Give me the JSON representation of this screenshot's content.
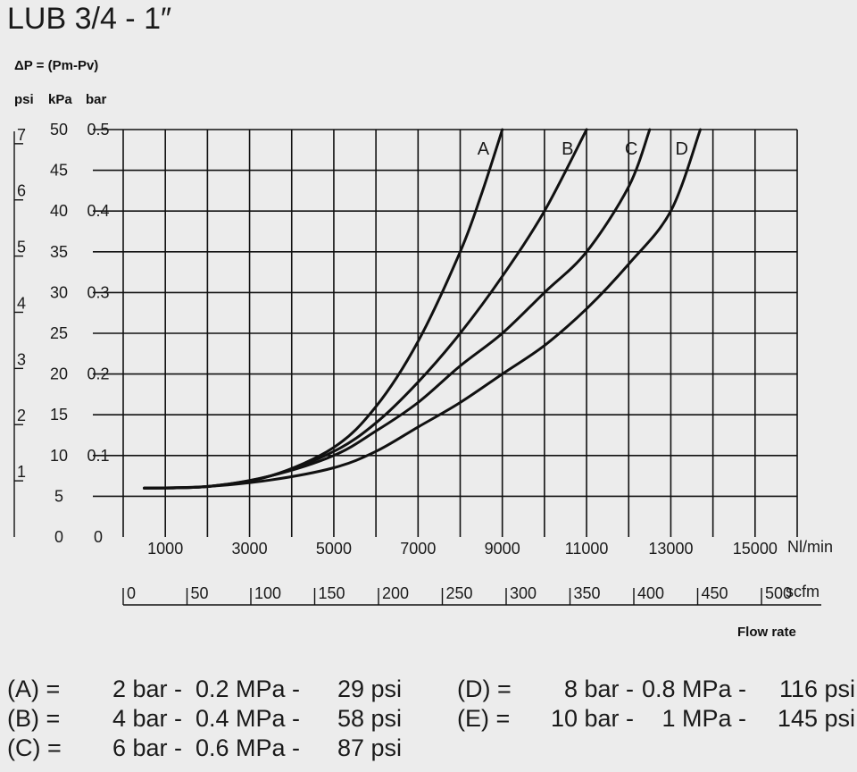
{
  "title": "LUB 3/4 - 1″",
  "delta_p_label": "ΔP = (Pm-Pv)",
  "unit_headers": {
    "psi": "psi",
    "kpa": "kPa",
    "bar": "bar"
  },
  "chart_data": {
    "type": "line",
    "x_unit": "Nl/min",
    "x_unit_secondary": "scfm",
    "xlabel": "Flow rate",
    "y_units": [
      "psi",
      "kPa",
      "bar"
    ],
    "xlim": [
      0,
      16000
    ],
    "ylim_kpa": [
      0,
      50
    ],
    "x_ticks": [
      1000,
      3000,
      5000,
      7000,
      9000,
      11000,
      13000,
      15000
    ],
    "x_tick_labels": [
      "1000",
      "3000",
      "5000",
      "7000",
      "9000",
      "11000",
      "13000",
      "15000"
    ],
    "scfm_ticks": [
      0,
      50,
      100,
      150,
      200,
      250,
      300,
      350,
      400,
      450,
      500
    ],
    "scfm_tick_labels": [
      "0",
      "50",
      "100",
      "150",
      "200",
      "250",
      "300",
      "350",
      "400",
      "450",
      "500"
    ],
    "kpa_ticks": [
      0,
      5,
      10,
      15,
      20,
      25,
      30,
      35,
      40,
      45,
      50
    ],
    "kpa_tick_labels": [
      "0",
      "5",
      "10",
      "15",
      "20",
      "25",
      "30",
      "35",
      "40",
      "45",
      "50"
    ],
    "bar_ticks": [
      0,
      0.1,
      0.2,
      0.3,
      0.4,
      0.5
    ],
    "bar_tick_labels": [
      "0",
      "0.1",
      "0.2",
      "0.3",
      "0.4",
      "0.5"
    ],
    "psi_ticks": [
      1,
      2,
      3,
      4,
      5,
      6,
      7
    ],
    "psi_tick_labels": [
      "1",
      "2",
      "3",
      "4",
      "5",
      "6",
      "7"
    ],
    "grid": true,
    "series": [
      {
        "name": "A",
        "x": [
          500,
          2000,
          3500,
          5000,
          6000,
          7000,
          8000,
          8500,
          9000
        ],
        "y_kpa": [
          6,
          6.2,
          7.5,
          11,
          16,
          24,
          35,
          42,
          50
        ]
      },
      {
        "name": "B",
        "x": [
          500,
          2000,
          3500,
          5000,
          6000,
          7000,
          8000,
          9000,
          10000,
          11000
        ],
        "y_kpa": [
          6,
          6.2,
          7.5,
          10.5,
          14,
          19,
          25,
          32,
          40,
          50
        ]
      },
      {
        "name": "C",
        "x": [
          500,
          2000,
          3500,
          5000,
          6000,
          7000,
          8000,
          9000,
          10000,
          11000,
          12000,
          12500
        ],
        "y_kpa": [
          6,
          6.2,
          7.5,
          10,
          13,
          16.5,
          21,
          25,
          30,
          35,
          43,
          50
        ]
      },
      {
        "name": "D",
        "x": [
          500,
          2000,
          3500,
          5000,
          6000,
          7000,
          8000,
          9000,
          10000,
          11000,
          12000,
          13000,
          13700
        ],
        "y_kpa": [
          6,
          6.2,
          7,
          8.5,
          10.5,
          13.5,
          16.5,
          20,
          23.5,
          28,
          33.5,
          40,
          50
        ]
      }
    ]
  },
  "legend": [
    {
      "key": "(A) =",
      "bar": "2 bar -",
      "mpa": "0.2 MPa -",
      "psi": "29 psi"
    },
    {
      "key": "(B) =",
      "bar": "4 bar -",
      "mpa": "0.4 MPa -",
      "psi": "58 psi"
    },
    {
      "key": "(C) =",
      "bar": "6 bar -",
      "mpa": "0.6 MPa -",
      "psi": "87 psi"
    },
    {
      "key": "(D) =",
      "bar": "8 bar -",
      "mpa": "0.8 MPa -",
      "psi": "116 psi"
    },
    {
      "key": "(E) =",
      "bar": "10 bar -",
      "mpa": "1 MPa -",
      "psi": "145 psi"
    }
  ]
}
